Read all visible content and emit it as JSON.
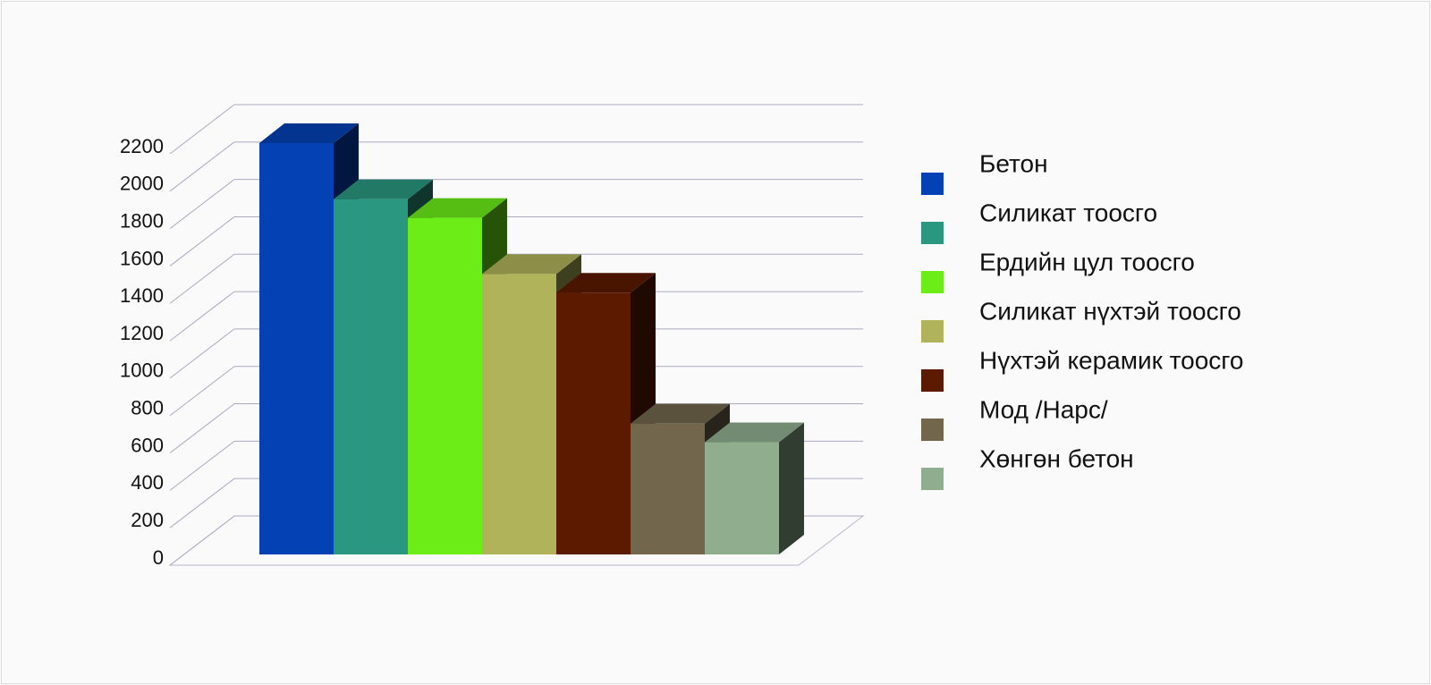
{
  "chart_data": {
    "type": "bar3d",
    "ylim": [
      0,
      2200
    ],
    "yticks": [
      0,
      200,
      400,
      600,
      800,
      1000,
      1200,
      1400,
      1600,
      1800,
      2000,
      2200
    ],
    "grid": true,
    "legend": "right",
    "series": [
      {
        "name": "Бетон",
        "color": "#0341b4",
        "values": [
          2200
        ]
      },
      {
        "name": "Силикат тоосго",
        "color": "#2a9780",
        "values": [
          1900
        ]
      },
      {
        "name": "Ердийн цул тоосго",
        "color": "#6ced18",
        "values": [
          1800
        ]
      },
      {
        "name": "Силикат нүхтэй тоосго",
        "color": "#b0b35a",
        "values": [
          1500
        ]
      },
      {
        "name": "Нүхтэй керамик тоосго",
        "color": "#5c1a00",
        "values": [
          1400
        ]
      },
      {
        "name": "Мод /Нарс/",
        "color": "#72664c",
        "values": [
          700
        ]
      },
      {
        "name": "Хөнгөн бетон",
        "color": "#90ae8e",
        "values": [
          600
        ]
      }
    ]
  }
}
